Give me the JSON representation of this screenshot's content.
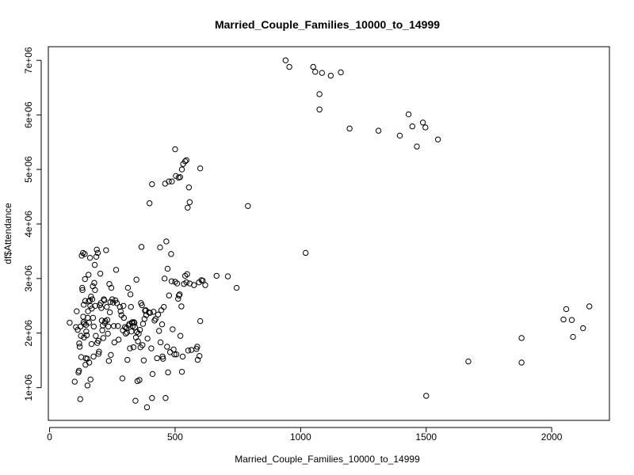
{
  "chart_data": {
    "type": "scatter",
    "title": "Married_Couple_Families_10000_to_14999",
    "xlabel": "Married_Couple_Families_10000_to_14999",
    "ylabel": "df$Attendance",
    "xlim": [
      -5,
      2230
    ],
    "ylim": [
      400000,
      7250000
    ],
    "x_ticks": [
      0,
      500,
      1000,
      1500,
      2000
    ],
    "x_tick_labels": [
      "0",
      "500",
      "1000",
      "1500",
      "2000"
    ],
    "y_ticks": [
      1000000,
      2000000,
      3000000,
      4000000,
      5000000,
      6000000,
      7000000
    ],
    "y_tick_labels": [
      "1e+06",
      "2e+06",
      "3e+06",
      "4e+06",
      "5e+06",
      "6e+06",
      "7e+06"
    ],
    "grid": false,
    "points": [
      [
        940,
        7000000
      ],
      [
        955,
        6880000
      ],
      [
        1050,
        6880000
      ],
      [
        1058,
        6790000
      ],
      [
        1085,
        6770000
      ],
      [
        1120,
        6720000
      ],
      [
        1160,
        6780000
      ],
      [
        1075,
        6380000
      ],
      [
        1075,
        6100000
      ],
      [
        1195,
        5750000
      ],
      [
        1310,
        5710000
      ],
      [
        1395,
        5620000
      ],
      [
        1430,
        6010000
      ],
      [
        1445,
        5790000
      ],
      [
        1463,
        5420000
      ],
      [
        1487,
        5860000
      ],
      [
        1497,
        5770000
      ],
      [
        1547,
        5550000
      ],
      [
        398,
        4380000
      ],
      [
        408,
        4730000
      ],
      [
        460,
        4740000
      ],
      [
        475,
        4780000
      ],
      [
        487,
        4780000
      ],
      [
        500,
        5370000
      ],
      [
        503,
        4880000
      ],
      [
        514,
        4850000
      ],
      [
        520,
        4860000
      ],
      [
        527,
        5000000
      ],
      [
        532,
        5100000
      ],
      [
        540,
        5150000
      ],
      [
        545,
        5170000
      ],
      [
        550,
        4300000
      ],
      [
        555,
        4670000
      ],
      [
        558,
        4400000
      ],
      [
        600,
        5020000
      ],
      [
        790,
        4330000
      ],
      [
        1020,
        3470000
      ],
      [
        1668,
        1480000
      ],
      [
        1880,
        1460000
      ],
      [
        1880,
        1910000
      ],
      [
        1500,
        850000
      ],
      [
        2047,
        2250000
      ],
      [
        2058,
        2440000
      ],
      [
        2080,
        2240000
      ],
      [
        2085,
        1930000
      ],
      [
        2125,
        2090000
      ],
      [
        2150,
        2490000
      ],
      [
        80,
        2190000
      ],
      [
        100,
        1110000
      ],
      [
        105,
        2110000
      ],
      [
        108,
        2400000
      ],
      [
        112,
        2060000
      ],
      [
        115,
        1280000
      ],
      [
        117,
        1310000
      ],
      [
        118,
        1810000
      ],
      [
        120,
        1750000
      ],
      [
        122,
        790000
      ],
      [
        123,
        2120000
      ],
      [
        125,
        1950000
      ],
      [
        126,
        1560000
      ],
      [
        128,
        3420000
      ],
      [
        130,
        2830000
      ],
      [
        131,
        2790000
      ],
      [
        133,
        3470000
      ],
      [
        134,
        2300000
      ],
      [
        135,
        2200000
      ],
      [
        136,
        2520000
      ],
      [
        137,
        1920000
      ],
      [
        138,
        2170000
      ],
      [
        140,
        3450000
      ],
      [
        141,
        2990000
      ],
      [
        142,
        2590000
      ],
      [
        143,
        1420000
      ],
      [
        144,
        1540000
      ],
      [
        145,
        2150000
      ],
      [
        146,
        2030000
      ],
      [
        148,
        1960000
      ],
      [
        150,
        1530000
      ],
      [
        151,
        1040000
      ],
      [
        152,
        2280000
      ],
      [
        153,
        2400000
      ],
      [
        155,
        3070000
      ],
      [
        156,
        2580000
      ],
      [
        157,
        2190000
      ],
      [
        158,
        1460000
      ],
      [
        160,
        2600000
      ],
      [
        161,
        3380000
      ],
      [
        162,
        2500000
      ],
      [
        163,
        1150000
      ],
      [
        165,
        2670000
      ],
      [
        167,
        1800000
      ],
      [
        168,
        2450000
      ],
      [
        170,
        2620000
      ],
      [
        172,
        2860000
      ],
      [
        173,
        2280000
      ],
      [
        175,
        1570000
      ],
      [
        176,
        2120000
      ],
      [
        178,
        2920000
      ],
      [
        180,
        3250000
      ],
      [
        181,
        2790000
      ],
      [
        182,
        2500000
      ],
      [
        184,
        1950000
      ],
      [
        186,
        3400000
      ],
      [
        188,
        3530000
      ],
      [
        190,
        1820000
      ],
      [
        192,
        3470000
      ],
      [
        194,
        1860000
      ],
      [
        195,
        1620000
      ],
      [
        197,
        1660000
      ],
      [
        200,
        2510000
      ],
      [
        202,
        3090000
      ],
      [
        204,
        2550000
      ],
      [
        206,
        2460000
      ],
      [
        208,
        2230000
      ],
      [
        210,
        2050000
      ],
      [
        212,
        2140000
      ],
      [
        214,
        1910000
      ],
      [
        216,
        2620000
      ],
      [
        218,
        2600000
      ],
      [
        220,
        2190000
      ],
      [
        222,
        2220000
      ],
      [
        225,
        3520000
      ],
      [
        228,
        2480000
      ],
      [
        230,
        2240000
      ],
      [
        232,
        1990000
      ],
      [
        234,
        2120000
      ],
      [
        236,
        1490000
      ],
      [
        238,
        2900000
      ],
      [
        240,
        2380000
      ],
      [
        242,
        2570000
      ],
      [
        244,
        1600000
      ],
      [
        246,
        2830000
      ],
      [
        250,
        2620000
      ],
      [
        253,
        2560000
      ],
      [
        256,
        2130000
      ],
      [
        258,
        1830000
      ],
      [
        262,
        2600000
      ],
      [
        265,
        3160000
      ],
      [
        268,
        2550000
      ],
      [
        272,
        2130000
      ],
      [
        275,
        1880000
      ],
      [
        280,
        2480000
      ],
      [
        283,
        2400000
      ],
      [
        286,
        2330000
      ],
      [
        290,
        1170000
      ],
      [
        292,
        2050000
      ],
      [
        294,
        2500000
      ],
      [
        296,
        2280000
      ],
      [
        300,
        2110000
      ],
      [
        303,
        1990000
      ],
      [
        306,
        2090000
      ],
      [
        308,
        2010000
      ],
      [
        310,
        1510000
      ],
      [
        312,
        2830000
      ],
      [
        315,
        2140000
      ],
      [
        318,
        2170000
      ],
      [
        320,
        1720000
      ],
      [
        322,
        2710000
      ],
      [
        324,
        2480000
      ],
      [
        326,
        2030000
      ],
      [
        328,
        2190000
      ],
      [
        330,
        2200000
      ],
      [
        332,
        2130000
      ],
      [
        334,
        1740000
      ],
      [
        336,
        2200000
      ],
      [
        338,
        2190000
      ],
      [
        340,
        2110000
      ],
      [
        342,
        760000
      ],
      [
        344,
        1920000
      ],
      [
        346,
        2980000
      ],
      [
        348,
        2020000
      ],
      [
        350,
        1120000
      ],
      [
        352,
        1850000
      ],
      [
        355,
        1990000
      ],
      [
        358,
        1140000
      ],
      [
        360,
        2060000
      ],
      [
        362,
        1740000
      ],
      [
        364,
        2550000
      ],
      [
        366,
        3580000
      ],
      [
        368,
        2510000
      ],
      [
        370,
        1780000
      ],
      [
        372,
        2170000
      ],
      [
        375,
        1500000
      ],
      [
        378,
        2260000
      ],
      [
        380,
        2410000
      ],
      [
        383,
        2420000
      ],
      [
        385,
        2330000
      ],
      [
        388,
        640000
      ],
      [
        390,
        1900000
      ],
      [
        395,
        2380000
      ],
      [
        400,
        2370000
      ],
      [
        405,
        1720000
      ],
      [
        408,
        810000
      ],
      [
        410,
        1250000
      ],
      [
        414,
        2390000
      ],
      [
        418,
        2230000
      ],
      [
        422,
        2260000
      ],
      [
        428,
        1540000
      ],
      [
        432,
        2340000
      ],
      [
        436,
        2040000
      ],
      [
        440,
        3570000
      ],
      [
        442,
        1830000
      ],
      [
        445,
        2420000
      ],
      [
        448,
        2160000
      ],
      [
        450,
        1570000
      ],
      [
        452,
        1530000
      ],
      [
        455,
        2480000
      ],
      [
        458,
        3000000
      ],
      [
        462,
        810000
      ],
      [
        465,
        3680000
      ],
      [
        468,
        1750000
      ],
      [
        470,
        3180000
      ],
      [
        472,
        1280000
      ],
      [
        476,
        2690000
      ],
      [
        480,
        1650000
      ],
      [
        484,
        3450000
      ],
      [
        486,
        2950000
      ],
      [
        490,
        2070000
      ],
      [
        494,
        1700000
      ],
      [
        497,
        1610000
      ],
      [
        500,
        2940000
      ],
      [
        505,
        1610000
      ],
      [
        508,
        2910000
      ],
      [
        512,
        2630000
      ],
      [
        515,
        2690000
      ],
      [
        518,
        2710000
      ],
      [
        521,
        1950000
      ],
      [
        525,
        2490000
      ],
      [
        527,
        1290000
      ],
      [
        530,
        1570000
      ],
      [
        535,
        2900000
      ],
      [
        540,
        3050000
      ],
      [
        545,
        2930000
      ],
      [
        548,
        3080000
      ],
      [
        552,
        1680000
      ],
      [
        558,
        2910000
      ],
      [
        565,
        1690000
      ],
      [
        575,
        2880000
      ],
      [
        585,
        1710000
      ],
      [
        588,
        1750000
      ],
      [
        590,
        1510000
      ],
      [
        595,
        2930000
      ],
      [
        597,
        1580000
      ],
      [
        600,
        2220000
      ],
      [
        605,
        2970000
      ],
      [
        610,
        2960000
      ],
      [
        620,
        2880000
      ],
      [
        665,
        3050000
      ],
      [
        710,
        3040000
      ],
      [
        745,
        2830000
      ]
    ]
  }
}
